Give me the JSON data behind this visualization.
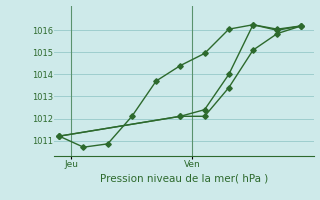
{
  "line1_x": [
    0,
    1,
    2,
    3,
    4,
    5,
    6,
    7,
    8,
    9,
    10
  ],
  "line1_y": [
    1011.2,
    1010.7,
    1010.85,
    1012.1,
    1013.7,
    1014.4,
    1014.95,
    1016.05,
    1016.25,
    1016.0,
    1016.2
  ],
  "line2_x": [
    0,
    5,
    6,
    7,
    8,
    9,
    10
  ],
  "line2_y": [
    1011.2,
    1012.1,
    1012.1,
    1013.4,
    1015.1,
    1015.85,
    1016.2
  ],
  "line3_x": [
    0,
    5,
    6,
    7,
    8,
    9,
    10
  ],
  "line3_y": [
    1011.2,
    1012.1,
    1012.4,
    1014.0,
    1016.25,
    1016.05,
    1016.2
  ],
  "line_color": "#2d6a2d",
  "bg_color": "#ceeaea",
  "grid_color": "#9ecece",
  "xlabel": "Pression niveau de la mer( hPa )",
  "ylim_min": 1010.3,
  "ylim_max": 1017.1,
  "yticks": [
    1011,
    1012,
    1013,
    1014,
    1015,
    1016
  ],
  "xtick_jeu_pos": 0.5,
  "xtick_ven_pos": 5.5,
  "vline_jeu": 0.5,
  "vline_ven": 5.5,
  "marker": "D",
  "markersize": 2.8,
  "linewidth": 1.0,
  "xlabel_fontsize": 7.5,
  "ytick_fontsize": 6.0,
  "xtick_fontsize": 6.5
}
